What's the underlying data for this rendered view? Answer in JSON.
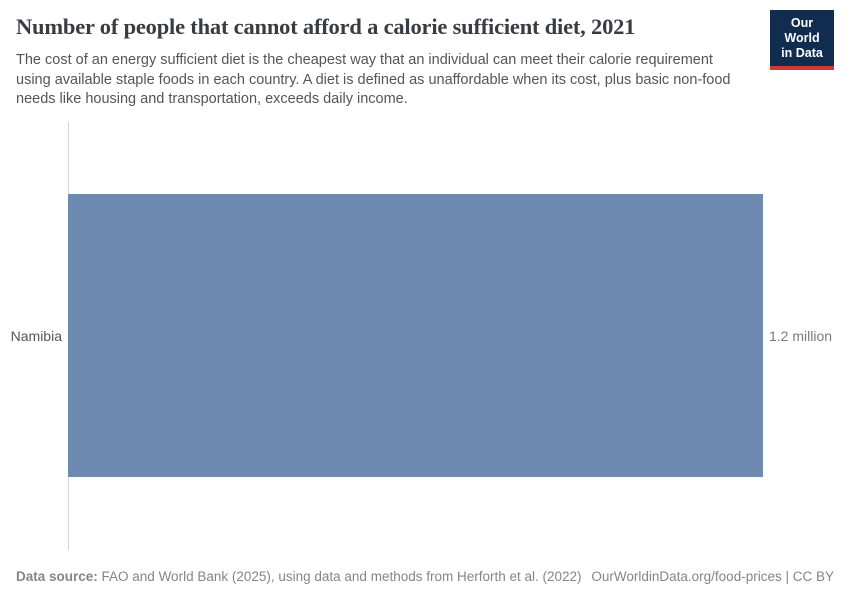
{
  "header": {
    "title": "Number of people that cannot afford a calorie sufficient diet, 2021",
    "subtitle": "The cost of an energy sufficient diet is the cheapest way that an individual can meet their calorie requirement using available staple foods in each country. A diet is defined as unaffordable when its cost, plus basic non-food needs like housing and transportation, exceeds daily income.",
    "logo": {
      "line1": "Our World",
      "line2": "in Data"
    }
  },
  "chart_data": {
    "type": "bar",
    "orientation": "horizontal",
    "title": "Number of people that cannot afford a calorie sufficient diet, 2021",
    "categories": [
      "Namibia"
    ],
    "values": [
      1200000
    ],
    "value_labels": [
      "1.2 million"
    ],
    "xlim": [
      0,
      1200000
    ],
    "grid": false,
    "legend": "none"
  },
  "footer": {
    "datasource_label": "Data source:",
    "datasource_text": " FAO and World Bank (2025), using data and methods from Herforth et al. (2022)",
    "url_text": "OurWorldinData.org/food-prices",
    "separator": " | ",
    "license_text": "CC BY"
  },
  "colors": {
    "bar": "#6e8ab0",
    "logo_background": "#102d50",
    "logo_accent": "#d13830",
    "axis_line": "#d5d5d5",
    "title_text": "#383d43",
    "subtitle_text": "#555555",
    "footer_text": "#858585"
  }
}
